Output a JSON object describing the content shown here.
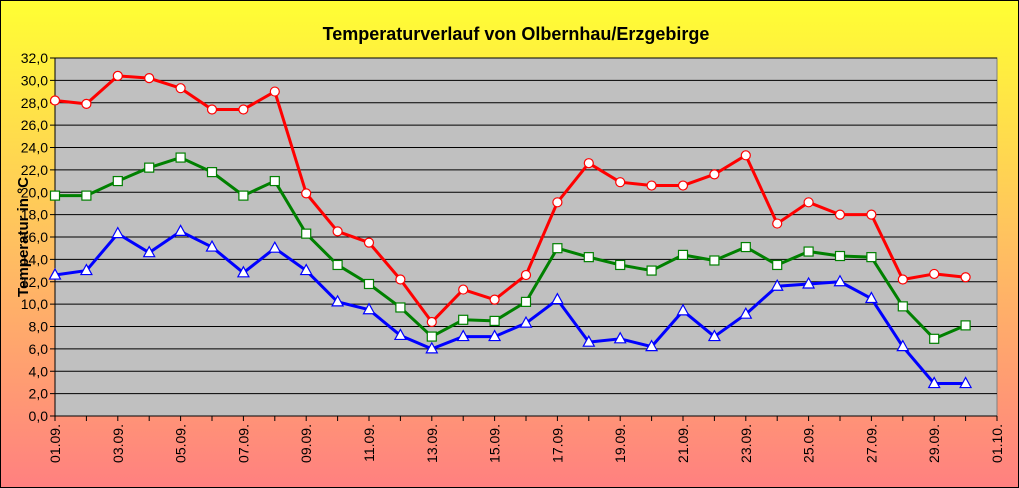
{
  "chart_data": {
    "type": "line",
    "title": "Temperaturverlauf von Olbernhau/Erzgebirge",
    "ylabel": "Temperatur in °C",
    "categories": [
      "01.09.",
      null,
      "03.09.",
      null,
      "05.09.",
      null,
      "07.09.",
      null,
      "09.09.",
      null,
      "11.09.",
      null,
      "13.09.",
      null,
      "15.09.",
      null,
      "17.09.",
      null,
      "19.09.",
      null,
      "21.09.",
      null,
      "23.09.",
      null,
      "25.09.",
      null,
      "27.09.",
      null,
      "29.09.",
      null,
      "01.10."
    ],
    "series": [
      {
        "color": "#ff0000",
        "marker": "circle",
        "values": [
          28.2,
          27.9,
          30.4,
          30.2,
          29.3,
          27.4,
          27.4,
          29.0,
          19.9,
          16.5,
          15.5,
          12.2,
          8.4,
          11.3,
          10.4,
          12.6,
          19.1,
          22.6,
          20.9,
          20.6,
          20.6,
          21.6,
          23.3,
          17.2,
          19.1,
          18.0,
          18.0,
          12.2,
          12.7,
          12.4,
          null
        ]
      },
      {
        "color": "#008000",
        "marker": "square",
        "values": [
          19.7,
          19.7,
          21.0,
          22.2,
          23.1,
          21.8,
          19.7,
          21.0,
          16.3,
          13.5,
          11.8,
          9.7,
          7.1,
          8.6,
          8.5,
          10.2,
          15.0,
          14.2,
          13.5,
          13.0,
          14.4,
          13.9,
          15.1,
          13.5,
          14.7,
          14.3,
          14.2,
          9.8,
          6.9,
          8.1,
          null
        ]
      },
      {
        "color": "#0000ff",
        "marker": "triangle",
        "values": [
          12.6,
          13.0,
          16.3,
          14.6,
          16.5,
          15.1,
          12.8,
          15.0,
          13.0,
          10.2,
          9.5,
          7.2,
          6.0,
          7.1,
          7.1,
          8.3,
          10.4,
          6.6,
          6.9,
          6.2,
          9.4,
          7.1,
          9.1,
          11.6,
          11.8,
          12.0,
          10.5,
          6.2,
          2.9,
          2.9,
          null
        ]
      }
    ],
    "ylim": [
      0,
      32
    ],
    "yticks": [
      {
        "value": 0,
        "label": "0,0"
      },
      {
        "value": 2,
        "label": "2,0"
      },
      {
        "value": 4,
        "label": "4,0"
      },
      {
        "value": 6,
        "label": "6,0"
      },
      {
        "value": 8,
        "label": "8,0"
      },
      {
        "value": 10,
        "label": "10,0"
      },
      {
        "value": 12,
        "label": "12,0"
      },
      {
        "value": 14,
        "label": "14,0"
      },
      {
        "value": 16,
        "label": "16,0"
      },
      {
        "value": 18,
        "label": "18,0"
      },
      {
        "value": 20,
        "label": "20,0"
      },
      {
        "value": 22,
        "label": "22,0"
      },
      {
        "value": 24,
        "label": "24,0"
      },
      {
        "value": 26,
        "label": "26,0"
      },
      {
        "value": 28,
        "label": "28,0"
      },
      {
        "value": 30,
        "label": "30,0"
      },
      {
        "value": 32,
        "label": "32,0"
      }
    ],
    "grid": true,
    "plot_background": "#c0c0c0"
  }
}
